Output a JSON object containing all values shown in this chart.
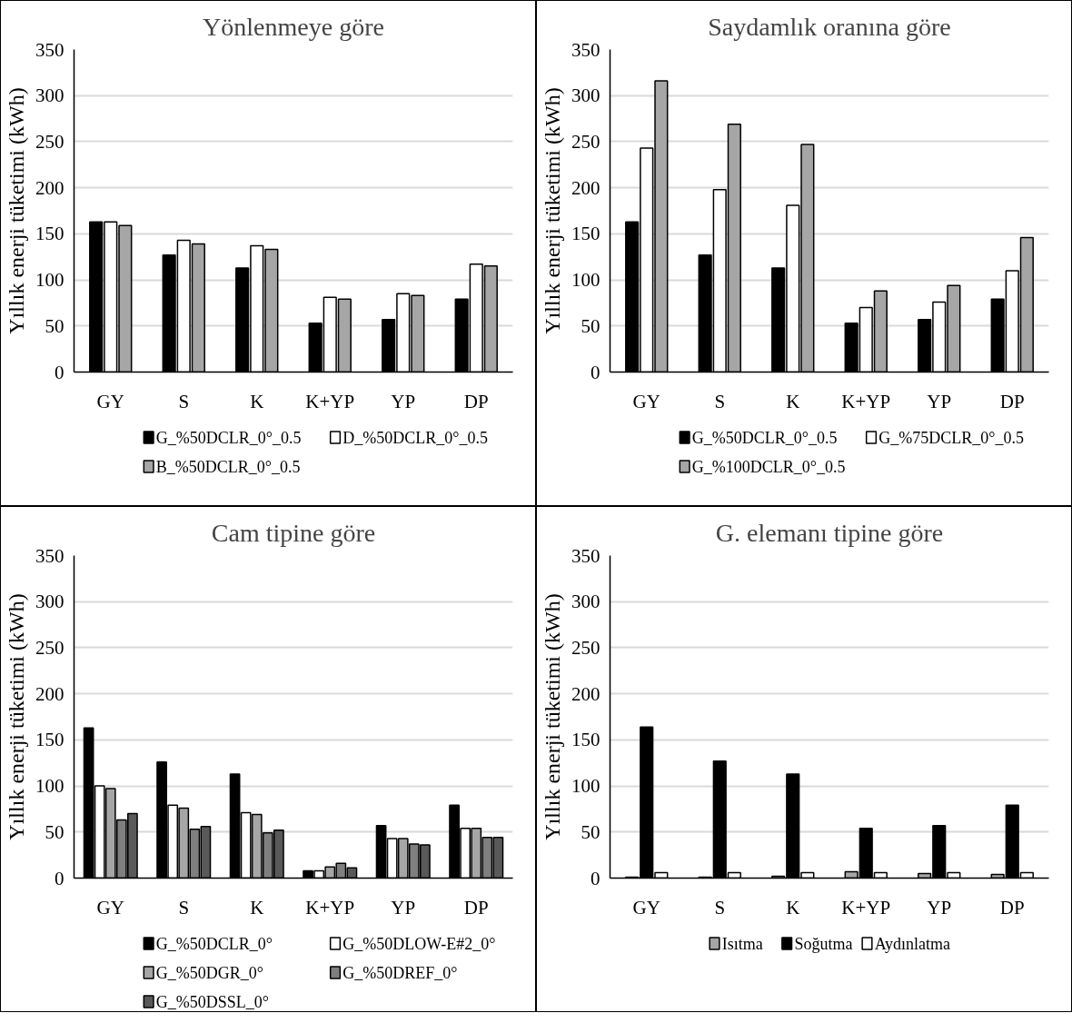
{
  "chart_data": [
    {
      "type": "bar",
      "title": "Yönlenmeye göre",
      "ylabel": "Yıllık enerji tüketimi (kWh)",
      "categories": [
        "GY",
        "S",
        "K",
        "K+YP",
        "YP",
        "DP"
      ],
      "ylim": [
        0,
        350
      ],
      "yticks": [
        0,
        50,
        100,
        150,
        200,
        250,
        300,
        350
      ],
      "grid": "y",
      "legend": "bottom",
      "series": [
        {
          "name": "G_%50DCLR_0°_0.5",
          "color": "#000000",
          "values": [
            163,
            127,
            113,
            53,
            57,
            79
          ]
        },
        {
          "name": "D_%50DCLR_0°_0.5",
          "color": "#ffffff",
          "values": [
            163,
            143,
            137,
            81,
            85,
            117
          ]
        },
        {
          "name": "B_%50DCLR_0°_0.5",
          "color": "#a6a6a6",
          "values": [
            159,
            139,
            133,
            79,
            83,
            115
          ]
        }
      ]
    },
    {
      "type": "bar",
      "title": "Saydamlık oranına göre",
      "ylabel": "Yıllık enerji tüketimi (kWh)",
      "categories": [
        "GY",
        "S",
        "K",
        "K+YP",
        "YP",
        "DP"
      ],
      "ylim": [
        0,
        350
      ],
      "yticks": [
        0,
        50,
        100,
        150,
        200,
        250,
        300,
        350
      ],
      "grid": "y",
      "legend": "bottom",
      "series": [
        {
          "name": "G_%50DCLR_0°_0.5",
          "color": "#000000",
          "values": [
            163,
            127,
            113,
            53,
            57,
            79
          ]
        },
        {
          "name": "G_%75DCLR_0°_0.5",
          "color": "#ffffff",
          "values": [
            243,
            198,
            181,
            70,
            76,
            110
          ]
        },
        {
          "name": "G_%100DCLR_0°_0.5",
          "color": "#a6a6a6",
          "values": [
            316,
            269,
            247,
            88,
            94,
            146
          ]
        }
      ]
    },
    {
      "type": "bar",
      "title": "Cam tipine göre",
      "ylabel": "Yıllık enerji tüketimi (kWh)",
      "categories": [
        "GY",
        "S",
        "K",
        "K+YP",
        "YP",
        "DP"
      ],
      "ylim": [
        0,
        350
      ],
      "yticks": [
        0,
        50,
        100,
        150,
        200,
        250,
        300,
        350
      ],
      "grid": "y",
      "legend": "bottom",
      "series": [
        {
          "name": "G_%50DCLR_0°",
          "color": "#000000",
          "values": [
            163,
            126,
            113,
            8,
            57,
            79
          ]
        },
        {
          "name": "G_%50DLOW-E#2_0°",
          "color": "#ffffff",
          "values": [
            100,
            79,
            71,
            8,
            43,
            54
          ]
        },
        {
          "name": "G_%50DGR_0°",
          "color": "#a6a6a6",
          "values": [
            97,
            76,
            69,
            12,
            43,
            54
          ]
        },
        {
          "name": "G_%50DREF_0°",
          "color": "#7f7f7f",
          "values": [
            63,
            53,
            49,
            16,
            37,
            44
          ]
        },
        {
          "name": "G_%50DSSL_0°",
          "color": "#595959",
          "values": [
            70,
            56,
            52,
            11,
            36,
            44
          ]
        }
      ]
    },
    {
      "type": "bar",
      "title": "G. elemanı tipine göre",
      "ylabel": "Yıllık enerji tüketimi (kWh)",
      "categories": [
        "GY",
        "S",
        "K",
        "K+YP",
        "YP",
        "DP"
      ],
      "ylim": [
        0,
        350
      ],
      "yticks": [
        0,
        50,
        100,
        150,
        200,
        250,
        300,
        350
      ],
      "grid": "y",
      "legend": "bottom",
      "series": [
        {
          "name": "Isıtma",
          "color": "#a6a6a6",
          "values": [
            1,
            1,
            2,
            7,
            5,
            4
          ]
        },
        {
          "name": "Soğutma",
          "color": "#000000",
          "values": [
            164,
            127,
            113,
            54,
            57,
            79
          ]
        },
        {
          "name": "Aydınlatma",
          "color": "#ffffff",
          "values": [
            6,
            6,
            6,
            6,
            6,
            6
          ]
        }
      ]
    }
  ]
}
